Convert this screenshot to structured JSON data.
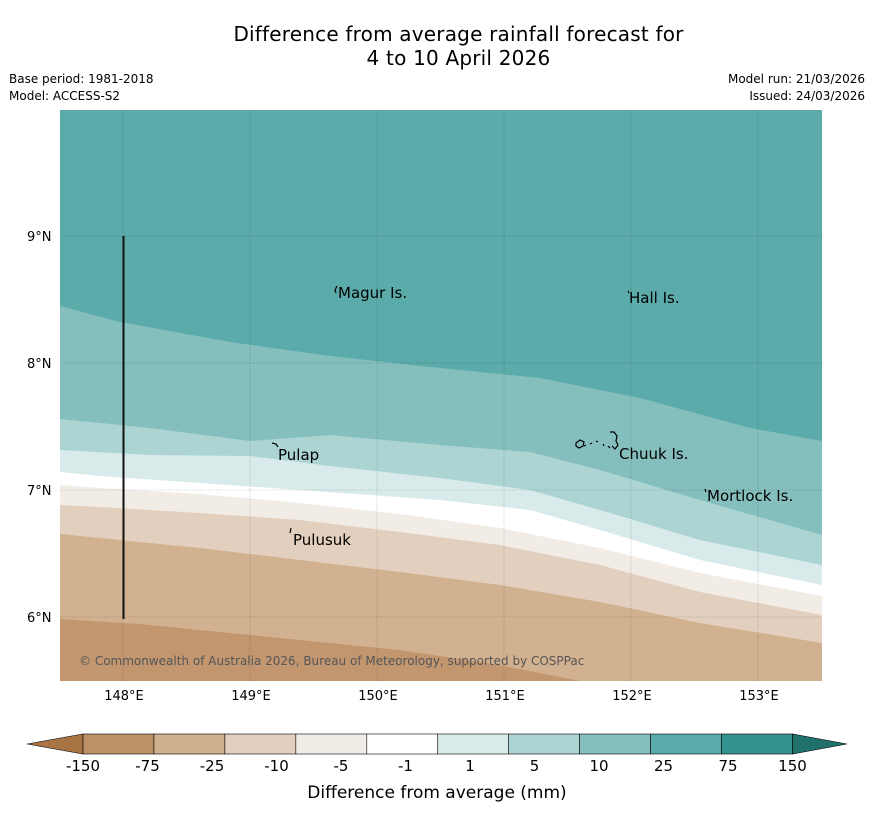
{
  "header": {
    "title_line1": "Difference from average rainfall forecast for",
    "title_line2": "4 to 10 April 2026",
    "base_period": "Base period: 1981-2018",
    "model": "Model: ACCESS-S2",
    "model_run": "Model run: 21/03/2026",
    "issued": "Issued: 24/03/2026"
  },
  "map": {
    "latitude_labels": [
      "9°N",
      "8°N",
      "7°N",
      "6°N"
    ],
    "longitude_labels": [
      "148°E",
      "149°E",
      "150°E",
      "151°E",
      "152°E",
      "153°E"
    ],
    "places": [
      {
        "name": "Magur Is.",
        "lon": 149.68,
        "lat": 8.57
      },
      {
        "name": "Hall Is.",
        "lon": 151.97,
        "lat": 8.53
      },
      {
        "name": "Pulap",
        "lon": 149.18,
        "lat": 7.3
      },
      {
        "name": "Chuuk Is.",
        "lon": 151.85,
        "lat": 7.32
      },
      {
        "name": "Mortlock Is.",
        "lon": 152.6,
        "lat": 6.98
      },
      {
        "name": "Pulusuk",
        "lon": 149.3,
        "lat": 6.65
      }
    ],
    "copyright": "© Commonwealth of Australia 2026, Bureau of Meteorology, supported by COSPPac"
  },
  "colorbar": {
    "title": "Difference from average (mm)",
    "ticks": [
      "-150",
      "-75",
      "-25",
      "-10",
      "-5",
      "-1",
      "1",
      "5",
      "10",
      "25",
      "75",
      "150"
    ],
    "colors": [
      "#a97443",
      "#bd9166",
      "#d1b090",
      "#e2cfbd",
      "#f2ece6",
      "#ffffff",
      "#d8ebea",
      "#abd4d3",
      "#84bfbe",
      "#5aabaa",
      "#35938f",
      "#20706b"
    ]
  }
}
